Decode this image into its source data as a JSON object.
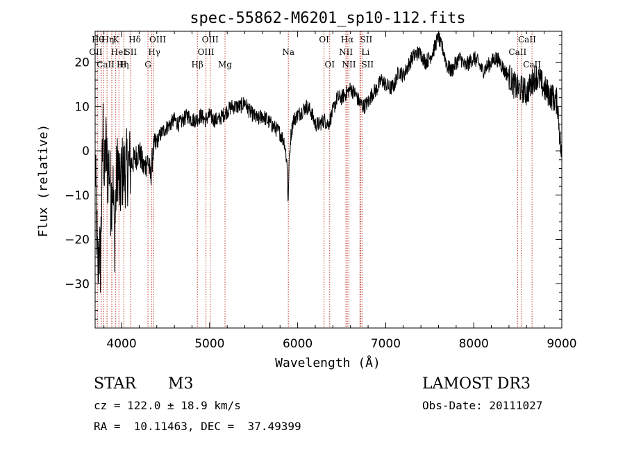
{
  "chart_data": {
    "type": "line",
    "title": "spec-55862-M6201_sp10-112.fits",
    "xlabel": "Wavelength (Å)",
    "ylabel": "Flux (relative)",
    "xlim": [
      3700,
      9000
    ],
    "ylim": [
      -40,
      27
    ],
    "x_ticks": [
      4000,
      5000,
      6000,
      7000,
      8000,
      9000
    ],
    "y_ticks": [
      -30,
      -20,
      -10,
      0,
      10,
      20
    ],
    "grid": false,
    "series": [
      {
        "name": "flux",
        "anchors_x": [
          3700,
          3715,
          3730,
          3745,
          3760,
          3775,
          3790,
          3805,
          3820,
          3840,
          3860,
          3880,
          3900,
          3920,
          3940,
          3960,
          3980,
          4000,
          4050,
          4100,
          4150,
          4200,
          4250,
          4300,
          4330,
          4360,
          4400,
          4450,
          4500,
          4550,
          4600,
          4650,
          4700,
          4750,
          4800,
          4850,
          4900,
          4950,
          5000,
          5050,
          5100,
          5150,
          5200,
          5250,
          5300,
          5350,
          5400,
          5450,
          5500,
          5550,
          5600,
          5650,
          5700,
          5750,
          5800,
          5850,
          5880,
          5892,
          5896,
          5900,
          5920,
          5950,
          6000,
          6050,
          6100,
          6150,
          6200,
          6250,
          6300,
          6350,
          6400,
          6450,
          6500,
          6550,
          6600,
          6650,
          6700,
          6750,
          6800,
          6850,
          6900,
          6950,
          7000,
          7050,
          7100,
          7150,
          7200,
          7250,
          7300,
          7350,
          7400,
          7450,
          7500,
          7550,
          7600,
          7620,
          7650,
          7700,
          7750,
          7800,
          7850,
          7900,
          7950,
          8000,
          8050,
          8100,
          8150,
          8200,
          8250,
          8300,
          8350,
          8400,
          8450,
          8500,
          8550,
          8600,
          8650,
          8700,
          8750,
          8800,
          8850,
          8900,
          8950,
          8990
        ],
        "anchors_y": [
          -2,
          -15,
          -28,
          -22,
          -25,
          -10,
          5,
          -8,
          2,
          -5,
          -3,
          -12,
          -6,
          -20,
          -8,
          -2,
          -10,
          -5,
          -4,
          -3,
          -2,
          0,
          -4,
          -2,
          -6,
          0,
          2,
          4,
          5,
          6,
          7,
          6,
          7,
          8,
          7,
          7,
          8,
          7,
          8,
          7,
          7,
          8,
          9,
          10,
          10,
          10,
          11,
          9,
          8,
          7,
          8,
          7,
          6,
          5,
          4,
          2,
          -3,
          -12,
          -10,
          -4,
          3,
          7,
          8,
          9,
          10,
          9,
          6,
          6,
          7,
          6,
          9,
          12,
          12,
          13,
          14,
          13,
          11,
          10,
          11,
          13,
          14,
          16,
          15,
          14,
          15,
          18,
          17,
          19,
          21,
          22,
          22,
          20,
          21,
          23,
          26,
          24,
          23,
          19,
          18,
          20,
          21,
          19,
          20,
          21,
          20,
          18,
          19,
          20,
          21,
          20,
          18,
          17,
          15,
          14,
          14,
          13,
          15,
          17,
          16,
          14,
          13,
          12,
          11,
          0
        ]
      }
    ],
    "lines": [
      {
        "x": 3730,
        "top": "Hθ",
        "row": 0,
        "off": 0
      },
      {
        "x": 3770,
        "top": "OII",
        "row": 1,
        "off": -8
      },
      {
        "x": 3798,
        "top": "Hη",
        "row": 0,
        "off": 6
      },
      {
        "x": 3835,
        "top": "CaII",
        "row": 2,
        "off": -2
      },
      {
        "x": 3889,
        "top": "K",
        "row": 0,
        "off": 6
      },
      {
        "x": 3889,
        "top": "HeI",
        "row": 1,
        "off": 10
      },
      {
        "x": 3934,
        "top": "Hη",
        "row": 2,
        "off": 10
      },
      {
        "x": 3970,
        "top": "H",
        "row": 2,
        "off": 6
      },
      {
        "x": 4026,
        "top": "SII",
        "row": 1,
        "off": 10
      },
      {
        "x": 4102,
        "top": "Hδ",
        "row": 0,
        "off": 6
      },
      {
        "x": 4300,
        "top": "G",
        "row": 2,
        "off": 0
      },
      {
        "x": 4340,
        "top": "Hγ",
        "row": 1,
        "off": 4
      },
      {
        "x": 4363,
        "top": "OIII",
        "row": 0,
        "off": 6
      },
      {
        "x": 4861,
        "top": "Hβ",
        "row": 2,
        "off": 0
      },
      {
        "x": 4959,
        "top": "OIII",
        "row": 1,
        "off": 0
      },
      {
        "x": 5007,
        "top": "OIII",
        "row": 0,
        "off": 0
      },
      {
        "x": 5175,
        "top": "Mg",
        "row": 2,
        "off": 0
      },
      {
        "x": 5894,
        "top": "Na",
        "row": 1,
        "off": 0
      },
      {
        "x": 6300,
        "top": "OI",
        "row": 0,
        "off": 0
      },
      {
        "x": 6364,
        "top": "OI",
        "row": 2,
        "off": 0
      },
      {
        "x": 6548,
        "top": "NII",
        "row": 1,
        "off": 0
      },
      {
        "x": 6563,
        "top": "Hα",
        "row": 0,
        "off": 0
      },
      {
        "x": 6583,
        "top": "NII",
        "row": 2,
        "off": 0
      },
      {
        "x": 6707,
        "top": "Li",
        "row": 1,
        "off": 8
      },
      {
        "x": 6716,
        "top": "SII",
        "row": 0,
        "off": 8
      },
      {
        "x": 6731,
        "top": "SII",
        "row": 2,
        "off": 8
      },
      {
        "x": 8498,
        "top": "CaII",
        "row": 1,
        "off": 0
      },
      {
        "x": 8542,
        "top": "CaII",
        "row": 0,
        "off": 8
      },
      {
        "x": 8662,
        "top": "CaII",
        "row": 2,
        "off": 0
      }
    ]
  },
  "info": {
    "object_type": "STAR",
    "subclass": "M3",
    "survey": "LAMOST DR3",
    "cz": "cz = 122.0 ± 18.9 km/s",
    "obs_date": "Obs-Date: 20111027",
    "radec": "RA =  10.11463, DEC =  37.49399"
  }
}
